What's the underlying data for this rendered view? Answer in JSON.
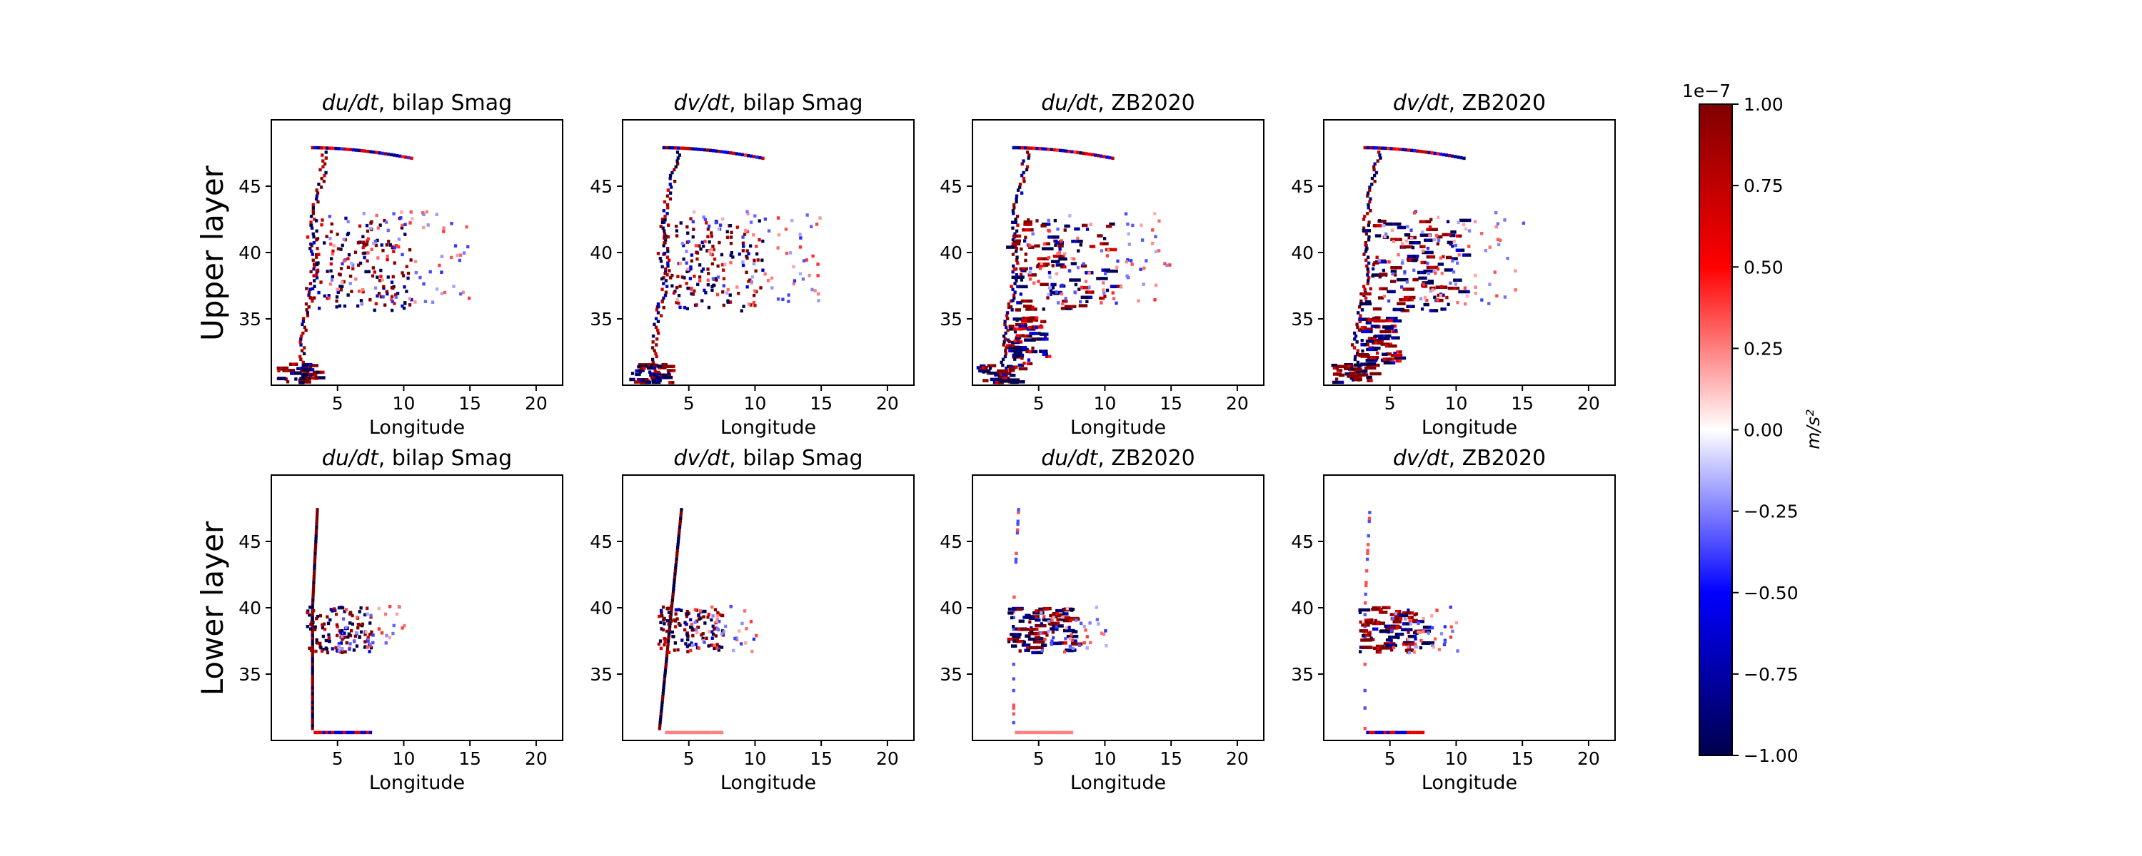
{
  "figure": {
    "row_labels": [
      "Upper layer",
      "Lower layer"
    ],
    "colorbar": {
      "label": "m/s²",
      "offset_label": "1e−7",
      "ticks": [
        "1.00",
        "0.75",
        "0.50",
        "0.25",
        "0.00",
        "−0.25",
        "−0.50",
        "−0.75",
        "−1.00"
      ],
      "tick_values": [
        1.0,
        0.75,
        0.5,
        0.25,
        0.0,
        -0.25,
        -0.5,
        -0.75,
        -1.0
      ],
      "colormap": "seismic",
      "colors": [
        "#00004d",
        "#0000ff",
        "#ffffff",
        "#ff0000",
        "#800000"
      ]
    }
  },
  "chart_data": [
    {
      "type": "heatmap",
      "row": "Upper layer",
      "title_var": "du/dt",
      "title_suffix": ", bilap Smag",
      "xlabel": "Longitude",
      "xlim": [
        0,
        22
      ],
      "ylim": [
        30,
        50
      ],
      "xticks": [
        5,
        10,
        15,
        20
      ],
      "yticks": [
        35,
        40,
        45
      ],
      "vlim": [
        -1,
        1
      ]
    },
    {
      "type": "heatmap",
      "row": "Upper layer",
      "title_var": "dv/dt",
      "title_suffix": ", bilap Smag",
      "xlabel": "Longitude",
      "xlim": [
        0,
        22
      ],
      "ylim": [
        30,
        50
      ],
      "xticks": [
        5,
        10,
        15,
        20
      ],
      "yticks": [
        35,
        40,
        45
      ],
      "vlim": [
        -1,
        1
      ]
    },
    {
      "type": "heatmap",
      "row": "Upper layer",
      "title_var": "du/dt",
      "title_suffix": ", ZB2020",
      "xlabel": "Longitude",
      "xlim": [
        0,
        22
      ],
      "ylim": [
        30,
        50
      ],
      "xticks": [
        5,
        10,
        15,
        20
      ],
      "yticks": [
        35,
        40,
        45
      ],
      "vlim": [
        -1,
        1
      ]
    },
    {
      "type": "heatmap",
      "row": "Upper layer",
      "title_var": "dv/dt",
      "title_suffix": ", ZB2020",
      "xlabel": "Longitude",
      "xlim": [
        0,
        22
      ],
      "ylim": [
        30,
        50
      ],
      "xticks": [
        5,
        10,
        15,
        20
      ],
      "yticks": [
        35,
        40,
        45
      ],
      "vlim": [
        -1,
        1
      ]
    },
    {
      "type": "heatmap",
      "row": "Lower layer",
      "title_var": "du/dt",
      "title_suffix": ", bilap Smag",
      "xlabel": "Longitude",
      "xlim": [
        0,
        22
      ],
      "ylim": [
        30,
        50
      ],
      "xticks": [
        5,
        10,
        15,
        20
      ],
      "yticks": [
        35,
        40,
        45
      ],
      "vlim": [
        -1,
        1
      ]
    },
    {
      "type": "heatmap",
      "row": "Lower layer",
      "title_var": "dv/dt",
      "title_suffix": ", bilap Smag",
      "xlabel": "Longitude",
      "xlim": [
        0,
        22
      ],
      "ylim": [
        30,
        50
      ],
      "xticks": [
        5,
        10,
        15,
        20
      ],
      "yticks": [
        35,
        40,
        45
      ],
      "vlim": [
        -1,
        1
      ]
    },
    {
      "type": "heatmap",
      "row": "Lower layer",
      "title_var": "du/dt",
      "title_suffix": ", ZB2020",
      "xlabel": "Longitude",
      "xlim": [
        0,
        22
      ],
      "ylim": [
        30,
        50
      ],
      "xticks": [
        5,
        10,
        15,
        20
      ],
      "yticks": [
        35,
        40,
        45
      ],
      "vlim": [
        -1,
        1
      ]
    },
    {
      "type": "heatmap",
      "row": "Lower layer",
      "title_var": "dv/dt",
      "title_suffix": ", ZB2020",
      "xlabel": "Longitude",
      "xlim": [
        0,
        22
      ],
      "ylim": [
        30,
        50
      ],
      "xticks": [
        5,
        10,
        15,
        20
      ],
      "yticks": [
        35,
        40,
        45
      ],
      "vlim": [
        -1,
        1
      ]
    }
  ]
}
